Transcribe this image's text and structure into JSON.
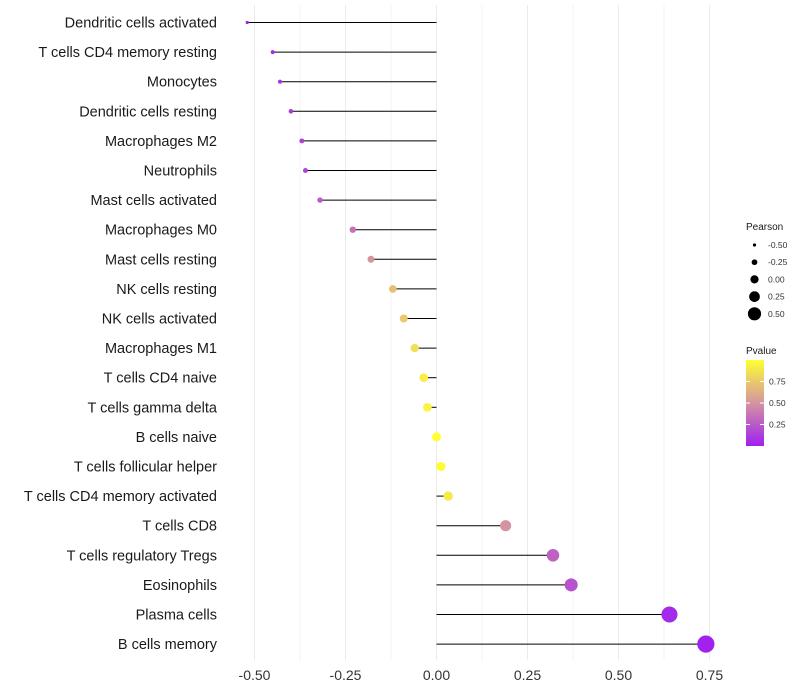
{
  "chart_data": {
    "type": "lollipop",
    "categories": [
      "Dendritic cells activated",
      "T cells CD4 memory resting",
      "Monocytes",
      "Dendritic cells resting",
      "Macrophages M2",
      "Neutrophils",
      "Mast cells activated",
      "Macrophages M0",
      "Mast cells resting",
      "NK cells resting",
      "NK cells activated",
      "Macrophages M1",
      "T cells CD4 naive",
      "T cells gamma delta",
      "B cells naive",
      "T cells follicular helper",
      "T cells CD4 memory activated",
      "T cells CD8",
      "T cells regulatory  Tregs ",
      "Eosinophils",
      "Plasma cells",
      "B cells memory"
    ],
    "values": [
      -0.52,
      -0.45,
      -0.43,
      -0.4,
      -0.37,
      -0.36,
      -0.32,
      -0.23,
      -0.18,
      -0.12,
      -0.09,
      -0.06,
      -0.035,
      -0.025,
      0.0,
      0.012,
      0.032,
      0.19,
      0.32,
      0.37,
      0.64,
      0.74
    ],
    "pvalues": [
      0.02,
      0.05,
      0.08,
      0.1,
      0.13,
      0.15,
      0.25,
      0.35,
      0.5,
      0.7,
      0.75,
      0.85,
      0.92,
      0.95,
      1.0,
      0.99,
      0.9,
      0.5,
      0.28,
      0.22,
      0.04,
      0.01
    ],
    "xlim": [
      -0.55,
      0.76
    ],
    "zero_line": 0,
    "x_ticks": [
      -0.5,
      -0.25,
      0.0,
      0.25,
      0.5,
      0.75
    ],
    "x_tick_labels": [
      "-0.50",
      "-0.25",
      "0.00",
      "0.25",
      "0.50",
      "0.75"
    ],
    "xlabel": "",
    "ylabel": "",
    "grid": true,
    "legend_position": "right",
    "legend": {
      "size_title": "Pearson",
      "size_values": [
        -0.5,
        -0.25,
        0.0,
        0.25,
        0.5
      ],
      "size_labels": [
        "-0.50",
        "-0.25",
        "0.00",
        "0.25",
        "0.50"
      ],
      "color_title": "Pvalue",
      "color_ticks": [
        0.75,
        0.5,
        0.25
      ],
      "color_labels": [
        "0.75",
        "0.50",
        "0.25"
      ],
      "color_low": "#a020f0",
      "color_mid": "#d494a0",
      "color_high": "#ffff33"
    }
  }
}
